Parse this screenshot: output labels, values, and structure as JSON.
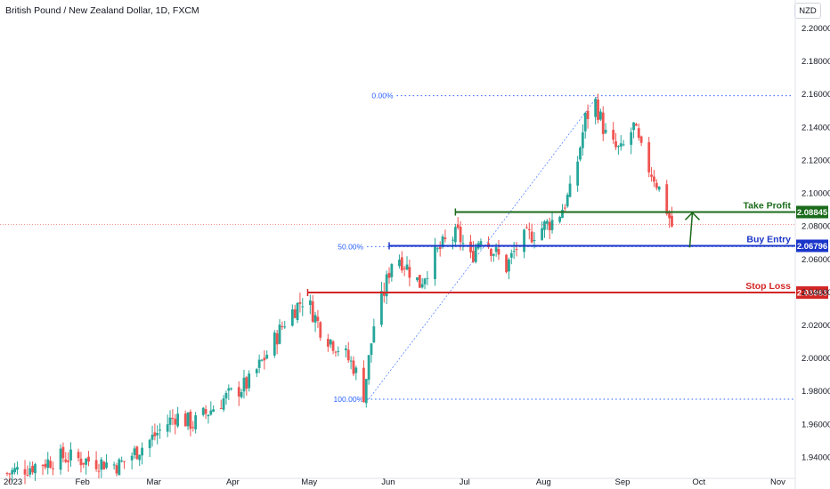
{
  "header": {
    "title": "British Pound / New Zealand Dollar, 1D, FXCM",
    "currency_button": "NZD"
  },
  "chart_data": {
    "type": "candlestick",
    "instrument": "British Pound / New Zealand Dollar",
    "interval": "1D",
    "source": "FXCM",
    "y_axis": {
      "ticks": [
        1.94,
        1.96,
        1.98,
        2.0,
        2.02,
        2.04,
        2.06,
        2.08,
        2.1,
        2.12,
        2.14,
        2.16,
        2.18,
        2.2
      ],
      "tick_labels": [
        "1.94000",
        "1.96000",
        "1.98000",
        "2.00000",
        "2.02000",
        "2.04000",
        "2.06000",
        "2.08000",
        "2.10000",
        "2.12000",
        "2.14000",
        "2.16000",
        "2.18000",
        "2.20000"
      ],
      "ylim": [
        1.927,
        2.217
      ]
    },
    "x_axis": {
      "labels": [
        {
          "text": "2023",
          "day": 0
        },
        {
          "text": "Feb",
          "day": 31
        },
        {
          "text": "Mar",
          "day": 59
        },
        {
          "text": "Apr",
          "day": 90
        },
        {
          "text": "May",
          "day": 120
        },
        {
          "text": "Jun",
          "day": 151
        },
        {
          "text": "Jul",
          "day": 181
        },
        {
          "text": "Aug",
          "day": 212
        },
        {
          "text": "Sep",
          "day": 243
        },
        {
          "text": "Oct",
          "day": 273
        },
        {
          "text": "Nov",
          "day": 304
        }
      ]
    },
    "close_waypoints": [
      {
        "day": 0,
        "close": 1.93
      },
      {
        "day": 22,
        "close": 1.94
      },
      {
        "day": 44,
        "close": 1.935
      },
      {
        "day": 56,
        "close": 1.95
      },
      {
        "day": 66,
        "close": 1.965
      },
      {
        "day": 73,
        "close": 1.96
      },
      {
        "day": 85,
        "close": 1.975
      },
      {
        "day": 95,
        "close": 1.985
      },
      {
        "day": 103,
        "close": 2.005
      },
      {
        "day": 110,
        "close": 2.025
      },
      {
        "day": 117,
        "close": 2.037
      },
      {
        "day": 124,
        "close": 2.015
      },
      {
        "day": 131,
        "close": 2.005
      },
      {
        "day": 136,
        "close": 1.995
      },
      {
        "day": 140,
        "close": 1.978
      },
      {
        "day": 144,
        "close": 2.02
      },
      {
        "day": 148,
        "close": 2.04
      },
      {
        "day": 152,
        "close": 2.065
      },
      {
        "day": 157,
        "close": 2.055
      },
      {
        "day": 162,
        "close": 2.045
      },
      {
        "day": 167,
        "close": 2.06
      },
      {
        "day": 172,
        "close": 2.07
      },
      {
        "day": 177,
        "close": 2.075
      },
      {
        "day": 182,
        "close": 2.06
      },
      {
        "day": 186,
        "close": 2.075
      },
      {
        "day": 191,
        "close": 2.065
      },
      {
        "day": 196,
        "close": 2.055
      },
      {
        "day": 201,
        "close": 2.07
      },
      {
        "day": 206,
        "close": 2.075
      },
      {
        "day": 211,
        "close": 2.08
      },
      {
        "day": 216,
        "close": 2.085
      },
      {
        "day": 221,
        "close": 2.1
      },
      {
        "day": 224,
        "close": 2.12
      },
      {
        "day": 227,
        "close": 2.145
      },
      {
        "day": 231,
        "close": 2.155
      },
      {
        "day": 233,
        "close": 2.145
      },
      {
        "day": 236,
        "close": 2.13
      },
      {
        "day": 241,
        "close": 2.125
      },
      {
        "day": 246,
        "close": 2.14
      },
      {
        "day": 250,
        "close": 2.12
      },
      {
        "day": 254,
        "close": 2.11
      },
      {
        "day": 258,
        "close": 2.095
      },
      {
        "day": 261,
        "close": 2.08
      }
    ],
    "fibonacci": {
      "levels": [
        {
          "label": "0.00%",
          "price": 2.159
        },
        {
          "label": "50.00%",
          "price": 2.0675
        },
        {
          "label": "100.00%",
          "price": 1.975
        }
      ],
      "start_day": 142,
      "end_day": 232
    },
    "trade_levels": [
      {
        "name": "Take Profit",
        "price": 2.08845,
        "price_label": "2.08845",
        "color": "#1b6b1b",
        "start_day": 176
      },
      {
        "name": "Buy Entry",
        "price": 2.06796,
        "price_label": "2.06796",
        "color": "#1a35c9",
        "start_day": 150
      },
      {
        "name": "Stop Loss",
        "price": 2.03963,
        "price_label": "2.03963",
        "color": "#d32626",
        "start_day": 118
      }
    ],
    "current_price": 2.081,
    "arrow": {
      "day": 268,
      "from": 2.067,
      "to": 2.088,
      "color": "#1b6b1b"
    },
    "up_color": "#26a69a",
    "down_color": "#ef5350"
  }
}
